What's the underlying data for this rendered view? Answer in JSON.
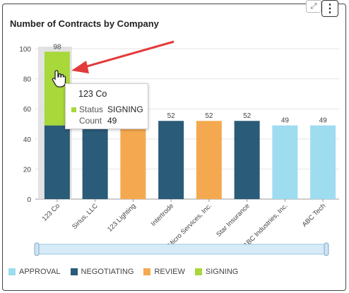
{
  "widget": {
    "title": "Number of Contracts by Company",
    "expand_icon": "expand-arrows-icon",
    "menu_icon": "vertical-dots-icon",
    "menu_glyph": "⋮",
    "expand_glyph": "⤢"
  },
  "tooltip": {
    "company": "123 Co",
    "status_label": "Status",
    "status_value": "SIGNING",
    "count_label": "Count",
    "count_value": "49",
    "status_color": "#a8d83a"
  },
  "chart_data": {
    "type": "bar",
    "stacked": true,
    "categories": [
      "123 Co",
      "Sirius, LLC",
      "123 Lighting",
      "Intertrode",
      "Micro Services, Inc.",
      "Star Insurance",
      "ABC Industries, Inc.",
      "ABC Tech"
    ],
    "totals": [
      98,
      52,
      52,
      52,
      52,
      52,
      49,
      49
    ],
    "series": [
      {
        "name": "APPROVAL",
        "color": "#9edcf0",
        "values": [
          0,
          0,
          0,
          0,
          0,
          0,
          49,
          49
        ]
      },
      {
        "name": "NEGOTIATING",
        "color": "#2a5b78",
        "values": [
          49,
          52,
          0,
          52,
          0,
          52,
          0,
          0
        ]
      },
      {
        "name": "REVIEW",
        "color": "#f4a950",
        "values": [
          0,
          0,
          52,
          0,
          52,
          0,
          0,
          0
        ]
      },
      {
        "name": "SIGNING",
        "color": "#a8d83a",
        "values": [
          49,
          0,
          0,
          0,
          0,
          0,
          0,
          0
        ]
      }
    ],
    "ylim": [
      0,
      100
    ],
    "yticks": [
      0,
      20,
      40,
      60,
      80,
      100
    ],
    "grid": true,
    "legend_position": "bottom-left"
  }
}
